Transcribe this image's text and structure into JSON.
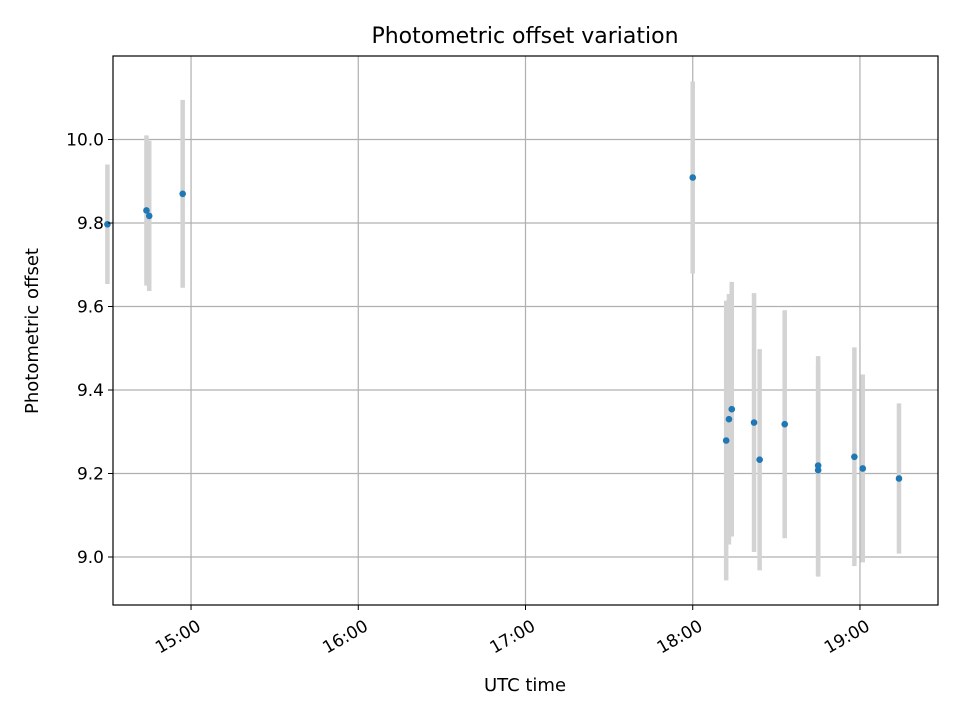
{
  "chart_data": {
    "type": "scatter",
    "title": "Photometric offset variation",
    "xlabel": "UTC time",
    "ylabel": "Photometric offset",
    "xlim": [
      "14:32",
      "19:28"
    ],
    "ylim": [
      8.885,
      10.2
    ],
    "x_ticks": [
      "15:00",
      "16:00",
      "17:00",
      "18:00",
      "19:00"
    ],
    "y_ticks": [
      "9.0",
      "9.2",
      "9.4",
      "9.6",
      "9.8",
      "10.0"
    ],
    "grid": true,
    "marker_color": "#1f77b4",
    "errorbar_color": "#d3d3d3",
    "points": [
      {
        "x": "14:30",
        "y": 9.797,
        "yerr": 0.143
      },
      {
        "x": "14:44",
        "y": 9.83,
        "yerr": 0.18
      },
      {
        "x": "14:45",
        "y": 9.817,
        "yerr": 0.18
      },
      {
        "x": "14:57",
        "y": 9.87,
        "yerr": 0.225
      },
      {
        "x": "18:00",
        "y": 9.909,
        "yerr": 0.23
      },
      {
        "x": "18:12",
        "y": 9.279,
        "yerr": 0.335
      },
      {
        "x": "18:13",
        "y": 9.33,
        "yerr": 0.3
      },
      {
        "x": "18:14",
        "y": 9.354,
        "yerr": 0.305
      },
      {
        "x": "18:22",
        "y": 9.322,
        "yerr": 0.31
      },
      {
        "x": "18:24",
        "y": 9.233,
        "yerr": 0.265
      },
      {
        "x": "18:33",
        "y": 9.318,
        "yerr": 0.273
      },
      {
        "x": "18:45",
        "y": 9.208,
        "yerr": 0.255
      },
      {
        "x": "18:45",
        "y": 9.219,
        "yerr": 0.262
      },
      {
        "x": "18:58",
        "y": 9.24,
        "yerr": 0.262
      },
      {
        "x": "19:01",
        "y": 9.212,
        "yerr": 0.225
      },
      {
        "x": "19:14",
        "y": 9.188,
        "yerr": 0.18
      }
    ]
  }
}
